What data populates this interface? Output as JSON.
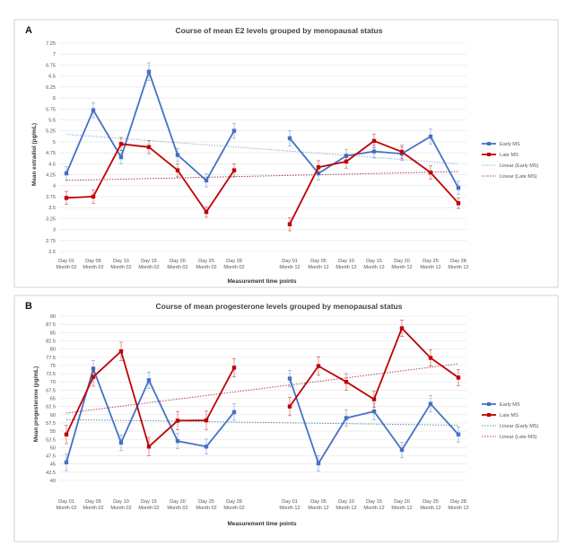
{
  "chart_data": [
    {
      "panel": "A",
      "type": "line",
      "title": "Course of mean E2 levels grouped by menopausal status",
      "ylabel": "Mean estradiol (pg/mL)",
      "xlabel": "Measurement time points",
      "ylim": [
        2.5,
        7.25
      ],
      "yticks": [
        "7.25",
        "7",
        "6.75",
        "6.5",
        "6.25",
        "6",
        "5.75",
        "5.5",
        "5.25",
        "5",
        "4.75",
        "4.5",
        "4.25",
        "4",
        "3.75",
        "3.5",
        "3.25",
        "3",
        "2.75",
        "2.5"
      ],
      "categories": [
        [
          "Day 01",
          "Month 02"
        ],
        [
          "Day 05",
          "Month 02"
        ],
        [
          "Day 10",
          "Month 02"
        ],
        [
          "Day 15",
          "Month 02"
        ],
        [
          "Day 20",
          "Month 02"
        ],
        [
          "Day 25",
          "Month 02"
        ],
        [
          "Day 28",
          "Month 02"
        ],
        [
          "Day 01",
          "Month 12"
        ],
        [
          "Day 05",
          "Month 12"
        ],
        [
          "Day 10",
          "Month 12"
        ],
        [
          "Day 15",
          "Month 12"
        ],
        [
          "Day 20",
          "Month 12"
        ],
        [
          "Day 25",
          "Month 12"
        ],
        [
          "Day 28",
          "Month 12"
        ]
      ],
      "legend": [
        "Early MS",
        "Late MS",
        "Linear (Early MS)",
        "Linear (Late MS)"
      ],
      "grid": true,
      "legend_position": "right",
      "series": [
        {
          "name": "Early MS",
          "color": "#4472c4",
          "values": [
            4.28,
            5.72,
            4.65,
            6.6,
            4.7,
            4.12,
            5.25,
            5.08,
            4.28,
            4.68,
            4.78,
            4.73,
            5.12,
            3.95
          ],
          "error": [
            0.15,
            0.17,
            0.15,
            0.2,
            0.15,
            0.15,
            0.17,
            0.17,
            0.15,
            0.15,
            0.15,
            0.15,
            0.17,
            0.15
          ]
        },
        {
          "name": "Late MS",
          "color": "#c00000",
          "values": [
            3.72,
            3.75,
            4.95,
            4.88,
            4.35,
            3.4,
            4.35,
            3.12,
            4.42,
            4.55,
            5.02,
            4.77,
            4.3,
            3.6
          ],
          "error": [
            0.15,
            0.15,
            0.15,
            0.15,
            0.15,
            0.12,
            0.15,
            0.15,
            0.15,
            0.15,
            0.15,
            0.15,
            0.15,
            0.12
          ]
        }
      ],
      "trendlines": [
        {
          "name": "Linear (Early MS)",
          "color": "#8eaed6",
          "y_start": 5.17,
          "y_end": 4.5
        },
        {
          "name": "Linear (Late MS)",
          "color": "#a23b5e",
          "y_start": 4.12,
          "y_end": 4.32
        }
      ]
    },
    {
      "panel": "B",
      "type": "line",
      "title": "Course of mean progesterone levels grouped by menopausal status",
      "ylabel": "Mean progesterone (pg/mL)",
      "xlabel": "Measurement time points",
      "ylim": [
        40,
        90
      ],
      "yticks": [
        "90",
        "87.5",
        "85",
        "82.5",
        "80",
        "77.5",
        "75",
        "72.5",
        "70",
        "67.5",
        "65",
        "62.5",
        "60",
        "57.5",
        "55",
        "52.5",
        "50",
        "47.5",
        "45",
        "42.5",
        "40"
      ],
      "categories": [
        [
          "Day 01",
          "Month 02"
        ],
        [
          "Day 05",
          "Month 02"
        ],
        [
          "Day 10",
          "Month 02"
        ],
        [
          "Day 15",
          "Month 02"
        ],
        [
          "Day 20",
          "Month 02"
        ],
        [
          "Day 25",
          "Month 02"
        ],
        [
          "Day 28",
          "Month 02"
        ],
        [
          "Day 01",
          "Month 12"
        ],
        [
          "Day 05",
          "Month 12"
        ],
        [
          "Day 10",
          "Month 12"
        ],
        [
          "Day 15",
          "Month 12"
        ],
        [
          "Day 20",
          "Month 12"
        ],
        [
          "Day 25",
          "Month 12"
        ],
        [
          "Day 28",
          "Month 12"
        ]
      ],
      "legend": [
        "Early MS",
        "Late MS",
        "Linear (Early MS)",
        "Linear (Late MS)"
      ],
      "grid": true,
      "legend_position": "right",
      "series": [
        {
          "name": "Early MS",
          "color": "#4472c4",
          "values": [
            45.5,
            74,
            51.5,
            70.5,
            52,
            50.3,
            60.8,
            71,
            45.2,
            59,
            61,
            49.3,
            63.3,
            54
          ],
          "error": [
            2.5,
            2.5,
            2.3,
            2.5,
            2.3,
            2.3,
            2.5,
            2.5,
            2.3,
            2.5,
            2.5,
            2.3,
            2.5,
            2.3
          ]
        },
        {
          "name": "Late MS",
          "color": "#c00000",
          "values": [
            54,
            71.5,
            79.3,
            50.3,
            58.2,
            58.3,
            74.3,
            62.5,
            74.8,
            70,
            64.7,
            86.3,
            77.3,
            71.3
          ],
          "error": [
            2.8,
            2.8,
            2.8,
            2.8,
            2.8,
            2.8,
            2.8,
            2.8,
            2.8,
            2.5,
            2.5,
            2.5,
            2.5,
            2.5
          ]
        }
      ],
      "trendlines": [
        {
          "name": "Linear (Early MS)",
          "color": "#5b8fa8",
          "y_start": 58.5,
          "y_end": 56.8
        },
        {
          "name": "Linear (Late MS)",
          "color": "#b3476b",
          "y_start": 60.5,
          "y_end": 75.5
        }
      ]
    }
  ]
}
